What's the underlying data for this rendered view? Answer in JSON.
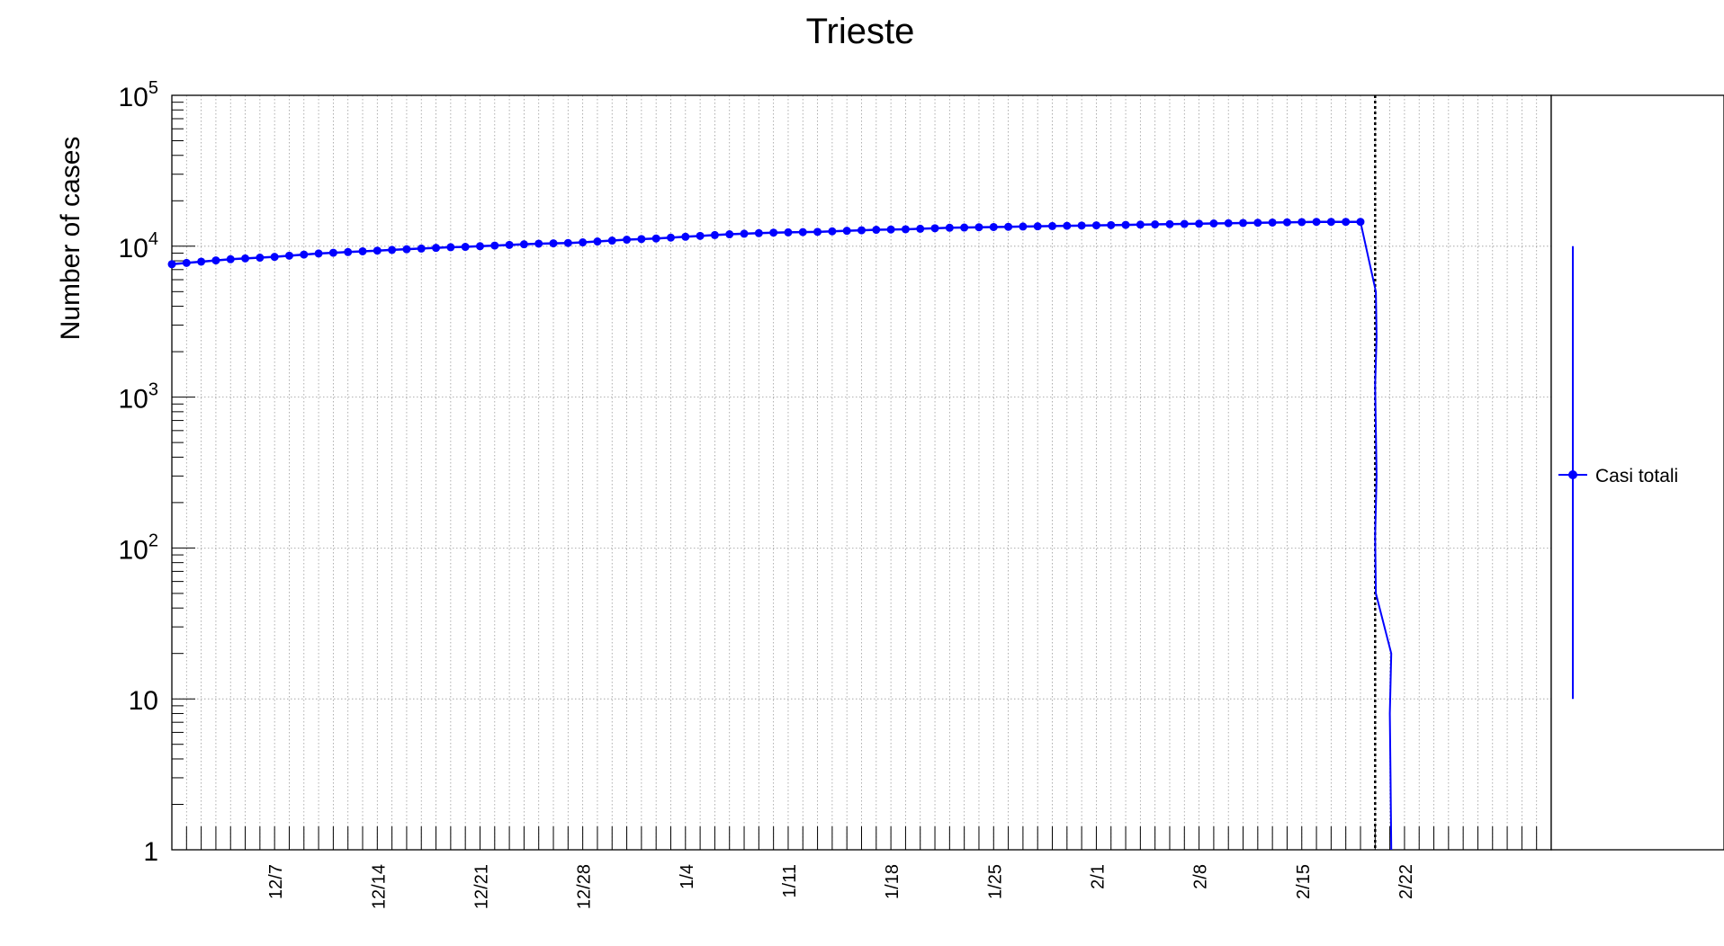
{
  "chart_data": {
    "type": "line",
    "title": "Trieste",
    "ylabel": "Number of cases",
    "xlabel": "",
    "y_scale": "log",
    "ylim": [
      1,
      100000
    ],
    "y_ticks": [
      {
        "value": 1,
        "base": "1",
        "exp": ""
      },
      {
        "value": 10,
        "base": "10",
        "exp": ""
      },
      {
        "value": 100,
        "base": "10",
        "exp": "2"
      },
      {
        "value": 1000,
        "base": "10",
        "exp": "3"
      },
      {
        "value": 10000,
        "base": "10",
        "exp": "4"
      },
      {
        "value": 100000,
        "base": "10",
        "exp": "5"
      }
    ],
    "x_range": [
      "2020-11-30",
      "2021-03-04"
    ],
    "x_tick_labels": [
      {
        "date": "2020-12-07",
        "label": "12/7"
      },
      {
        "date": "2020-12-14",
        "label": "12/14"
      },
      {
        "date": "2020-12-21",
        "label": "12/21"
      },
      {
        "date": "2020-12-28",
        "label": "12/28"
      },
      {
        "date": "2021-01-04",
        "label": "1/4"
      },
      {
        "date": "2021-01-11",
        "label": "1/11"
      },
      {
        "date": "2021-01-18",
        "label": "1/18"
      },
      {
        "date": "2021-01-25",
        "label": "1/25"
      },
      {
        "date": "2021-02-01",
        "label": "2/1"
      },
      {
        "date": "2021-02-08",
        "label": "2/8"
      },
      {
        "date": "2021-02-15",
        "label": "2/15"
      },
      {
        "date": "2021-02-22",
        "label": "2/22"
      }
    ],
    "grid": true,
    "vline_date": "2021-02-20",
    "legend_position": "right",
    "series": [
      {
        "name": "Casi totali",
        "color": "#0000ff",
        "x": [
          "2020-11-30",
          "2020-12-01",
          "2020-12-02",
          "2020-12-03",
          "2020-12-04",
          "2020-12-05",
          "2020-12-06",
          "2020-12-07",
          "2020-12-08",
          "2020-12-09",
          "2020-12-10",
          "2020-12-11",
          "2020-12-12",
          "2020-12-13",
          "2020-12-14",
          "2020-12-15",
          "2020-12-16",
          "2020-12-17",
          "2020-12-18",
          "2020-12-19",
          "2020-12-20",
          "2020-12-21",
          "2020-12-22",
          "2020-12-23",
          "2020-12-24",
          "2020-12-25",
          "2020-12-26",
          "2020-12-27",
          "2020-12-28",
          "2020-12-29",
          "2020-12-30",
          "2020-12-31",
          "2021-01-01",
          "2021-01-02",
          "2021-01-03",
          "2021-01-04",
          "2021-01-05",
          "2021-01-06",
          "2021-01-07",
          "2021-01-08",
          "2021-01-09",
          "2021-01-10",
          "2021-01-11",
          "2021-01-12",
          "2021-01-13",
          "2021-01-14",
          "2021-01-15",
          "2021-01-16",
          "2021-01-17",
          "2021-01-18",
          "2021-01-19",
          "2021-01-20",
          "2021-01-21",
          "2021-01-22",
          "2021-01-23",
          "2021-01-24",
          "2021-01-25",
          "2021-01-26",
          "2021-01-27",
          "2021-01-28",
          "2021-01-29",
          "2021-01-30",
          "2021-01-31",
          "2021-02-01",
          "2021-02-02",
          "2021-02-03",
          "2021-02-04",
          "2021-02-05",
          "2021-02-06",
          "2021-02-07",
          "2021-02-08",
          "2021-02-09",
          "2021-02-10",
          "2021-02-11",
          "2021-02-12",
          "2021-02-13",
          "2021-02-14",
          "2021-02-15",
          "2021-02-16",
          "2021-02-17",
          "2021-02-18",
          "2021-02-19"
        ],
        "y": [
          7600,
          7750,
          7900,
          8050,
          8200,
          8300,
          8400,
          8500,
          8650,
          8800,
          8950,
          9050,
          9150,
          9250,
          9350,
          9450,
          9550,
          9650,
          9750,
          9850,
          9900,
          10000,
          10100,
          10200,
          10300,
          10400,
          10450,
          10500,
          10600,
          10750,
          10900,
          11050,
          11150,
          11250,
          11400,
          11550,
          11700,
          11850,
          12000,
          12100,
          12200,
          12300,
          12350,
          12400,
          12450,
          12550,
          12650,
          12750,
          12850,
          12900,
          12950,
          13050,
          13150,
          13250,
          13300,
          13350,
          13400,
          13450,
          13500,
          13550,
          13600,
          13650,
          13700,
          13750,
          13800,
          13850,
          13900,
          13950,
          14000,
          14050,
          14100,
          14150,
          14200,
          14250,
          14300,
          14350,
          14400,
          14450,
          14500,
          14500,
          14500,
          14500
        ],
        "drop_dates": [
          "2021-02-19",
          "2021-02-20",
          "2021-02-20",
          "2021-02-20",
          "2021-02-20",
          "2021-02-20",
          "2021-02-20",
          "2021-02-20",
          "2021-02-21",
          "2021-02-21",
          "2021-02-21",
          "2021-02-21"
        ],
        "drop_values": [
          14500,
          5000,
          2500,
          1200,
          600,
          300,
          120,
          50,
          20,
          8,
          3,
          1
        ]
      }
    ],
    "legend_error_bar": [
      10,
      10000
    ]
  }
}
